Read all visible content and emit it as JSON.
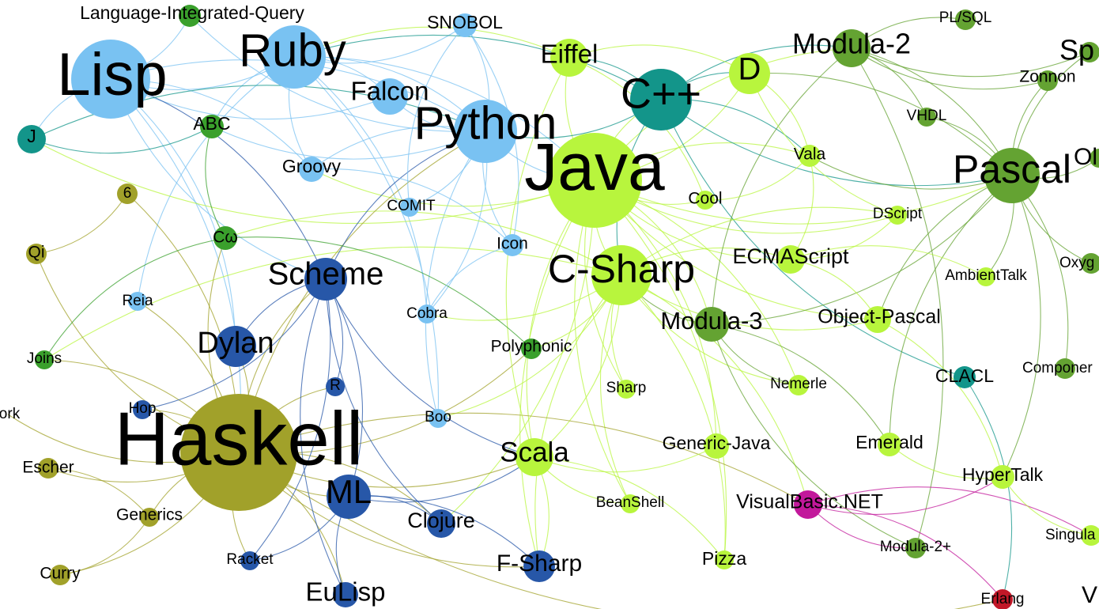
{
  "colors": {
    "light_blue": "#79c2f2",
    "dark_blue": "#2757a8",
    "teal": "#13958a",
    "lime": "#b8f53d",
    "green": "#3aa02c",
    "mid_green": "#64a332",
    "olive": "#a1a12a",
    "magenta": "#c2189b",
    "red": "#c21828"
  },
  "nodes": [
    {
      "id": "lisp",
      "label": "Lisp",
      "color": "light_blue"
    },
    {
      "id": "ruby",
      "label": "Ruby",
      "color": "light_blue"
    },
    {
      "id": "liq",
      "label": "Language-Integrated-Query",
      "color": "green"
    },
    {
      "id": "snobol",
      "label": "SNOBOL",
      "color": "light_blue"
    },
    {
      "id": "falcon",
      "label": "Falcon",
      "color": "light_blue"
    },
    {
      "id": "python",
      "label": "Python",
      "color": "light_blue"
    },
    {
      "id": "abc",
      "label": "ABC",
      "color": "green"
    },
    {
      "id": "j",
      "label": "J",
      "color": "teal"
    },
    {
      "id": "groovy",
      "label": "Groovy",
      "color": "light_blue"
    },
    {
      "id": "six",
      "label": "6",
      "color": "olive"
    },
    {
      "id": "comit",
      "label": "COMIT",
      "color": "light_blue"
    },
    {
      "id": "cw",
      "label": "Cω",
      "color": "green"
    },
    {
      "id": "qi",
      "label": "Qi",
      "color": "olive"
    },
    {
      "id": "icon",
      "label": "Icon",
      "color": "light_blue"
    },
    {
      "id": "scheme",
      "label": "Scheme",
      "color": "dark_blue"
    },
    {
      "id": "reia",
      "label": "Reia",
      "color": "light_blue"
    },
    {
      "id": "cobra",
      "label": "Cobra",
      "color": "light_blue"
    },
    {
      "id": "dylan",
      "label": "Dylan",
      "color": "dark_blue"
    },
    {
      "id": "polyphonic",
      "label": "Polyphonic",
      "color": "green"
    },
    {
      "id": "joins",
      "label": "Joins",
      "color": "green"
    },
    {
      "id": "r",
      "label": "R",
      "color": "dark_blue"
    },
    {
      "id": "hop",
      "label": "Hop",
      "color": "dark_blue"
    },
    {
      "id": "ork",
      "label": "ork",
      "color": "green"
    },
    {
      "id": "boo",
      "label": "Boo",
      "color": "light_blue"
    },
    {
      "id": "haskell",
      "label": "Haskell",
      "color": "olive"
    },
    {
      "id": "escher",
      "label": "Escher",
      "color": "olive"
    },
    {
      "id": "generics",
      "label": "Generics",
      "color": "olive"
    },
    {
      "id": "ml",
      "label": "ML",
      "color": "dark_blue"
    },
    {
      "id": "clojure",
      "label": "Clojure",
      "color": "dark_blue"
    },
    {
      "id": "racket",
      "label": "Racket",
      "color": "dark_blue"
    },
    {
      "id": "curry",
      "label": "Curry",
      "color": "olive"
    },
    {
      "id": "eulisp",
      "label": "EuLisp",
      "color": "dark_blue"
    },
    {
      "id": "fsharp",
      "label": "F-Sharp",
      "color": "dark_blue"
    },
    {
      "id": "eiffel",
      "label": "Eiffel",
      "color": "lime"
    },
    {
      "id": "cpp",
      "label": "C++",
      "color": "teal"
    },
    {
      "id": "d",
      "label": "D",
      "color": "lime"
    },
    {
      "id": "java",
      "label": "Java",
      "color": "lime"
    },
    {
      "id": "cool",
      "label": "Cool",
      "color": "lime"
    },
    {
      "id": "vala",
      "label": "Vala",
      "color": "lime"
    },
    {
      "id": "csharp",
      "label": "C-Sharp",
      "color": "lime"
    },
    {
      "id": "modula3",
      "label": "Modula-3",
      "color": "mid_green"
    },
    {
      "id": "ecmascript",
      "label": "ECMAScript",
      "color": "lime"
    },
    {
      "id": "objpascal",
      "label": "Object-Pascal",
      "color": "lime"
    },
    {
      "id": "sharp",
      "label": "Sharp",
      "color": "lime"
    },
    {
      "id": "nemerle",
      "label": "Nemerle",
      "color": "lime"
    },
    {
      "id": "scala",
      "label": "Scala",
      "color": "lime"
    },
    {
      "id": "genjava",
      "label": "Generic-Java",
      "color": "lime"
    },
    {
      "id": "beanshell",
      "label": "BeanShell",
      "color": "lime"
    },
    {
      "id": "pizza",
      "label": "Pizza",
      "color": "lime"
    },
    {
      "id": "vbnet",
      "label": "VisualBasic.NET",
      "color": "magenta"
    },
    {
      "id": "emerald",
      "label": "Emerald",
      "color": "lime"
    },
    {
      "id": "modula2",
      "label": "Modula-2",
      "color": "mid_green"
    },
    {
      "id": "plsql",
      "label": "PL/SQL",
      "color": "mid_green"
    },
    {
      "id": "sp",
      "label": "Sp",
      "color": "mid_green"
    },
    {
      "id": "zonnon",
      "label": "Zonnon",
      "color": "mid_green"
    },
    {
      "id": "vhdl",
      "label": "VHDL",
      "color": "mid_green"
    },
    {
      "id": "pascal",
      "label": "Pascal",
      "color": "mid_green"
    },
    {
      "id": "ol",
      "label": "Ol",
      "color": "mid_green"
    },
    {
      "id": "dscript",
      "label": "DScript",
      "color": "lime"
    },
    {
      "id": "ambienttalk",
      "label": "AmbientTalk",
      "color": "lime"
    },
    {
      "id": "oxygene",
      "label": "Oxyg",
      "color": "mid_green"
    },
    {
      "id": "clacl",
      "label": "CLACL",
      "color": "teal"
    },
    {
      "id": "component",
      "label": "Componer",
      "color": "mid_green"
    },
    {
      "id": "hypertalk",
      "label": "HyperTalk",
      "color": "lime"
    },
    {
      "id": "singular",
      "label": "Singula",
      "color": "lime"
    },
    {
      "id": "modula2p",
      "label": "Modula-2+",
      "color": "mid_green"
    },
    {
      "id": "erlang",
      "label": "Erlang",
      "color": "red"
    },
    {
      "id": "v",
      "label": "V",
      "color": "mid_green"
    }
  ],
  "edges": [
    [
      "lisp",
      "ruby"
    ],
    [
      "lisp",
      "python"
    ],
    [
      "lisp",
      "scheme"
    ],
    [
      "lisp",
      "dylan"
    ],
    [
      "lisp",
      "j"
    ],
    [
      "lisp",
      "haskell"
    ],
    [
      "lisp",
      "falcon"
    ],
    [
      "lisp",
      "groovy"
    ],
    [
      "lisp",
      "liq"
    ],
    [
      "ruby",
      "python"
    ],
    [
      "ruby",
      "groovy"
    ],
    [
      "ruby",
      "falcon"
    ],
    [
      "ruby",
      "snobol"
    ],
    [
      "ruby",
      "java"
    ],
    [
      "ruby",
      "abc"
    ],
    [
      "ruby",
      "cobra"
    ],
    [
      "ruby",
      "reia"
    ],
    [
      "ruby",
      "boo"
    ],
    [
      "python",
      "java"
    ],
    [
      "python",
      "abc"
    ],
    [
      "python",
      "icon"
    ],
    [
      "python",
      "cobra"
    ],
    [
      "python",
      "boo"
    ],
    [
      "python",
      "falcon"
    ],
    [
      "python",
      "groovy"
    ],
    [
      "python",
      "comit"
    ],
    [
      "python",
      "snobol"
    ],
    [
      "python",
      "liq"
    ],
    [
      "java",
      "csharp"
    ],
    [
      "java",
      "cpp"
    ],
    [
      "java",
      "scala"
    ],
    [
      "java",
      "eiffel"
    ],
    [
      "java",
      "d"
    ],
    [
      "java",
      "modula3"
    ],
    [
      "java",
      "pascal"
    ],
    [
      "java",
      "groovy"
    ],
    [
      "java",
      "cool"
    ],
    [
      "java",
      "vala"
    ],
    [
      "java",
      "ecmascript"
    ],
    [
      "java",
      "genjava"
    ],
    [
      "java",
      "beanshell"
    ],
    [
      "java",
      "pizza"
    ],
    [
      "java",
      "sharp"
    ],
    [
      "java",
      "nemerle"
    ],
    [
      "java",
      "objpascal"
    ],
    [
      "java",
      "modula2"
    ],
    [
      "java",
      "fsharp"
    ],
    [
      "java",
      "clojure"
    ],
    [
      "java",
      "dscript"
    ],
    [
      "java",
      "j"
    ],
    [
      "cpp",
      "eiffel"
    ],
    [
      "cpp",
      "d"
    ],
    [
      "cpp",
      "csharp"
    ],
    [
      "cpp",
      "python"
    ],
    [
      "cpp",
      "ruby"
    ],
    [
      "cpp",
      "modula2"
    ],
    [
      "cpp",
      "clacl"
    ],
    [
      "cpp",
      "vala"
    ],
    [
      "cpp",
      "pascal"
    ],
    [
      "csharp",
      "scala"
    ],
    [
      "csharp",
      "fsharp"
    ],
    [
      "csharp",
      "polyphonic"
    ],
    [
      "csharp",
      "cw"
    ],
    [
      "csharp",
      "vbnet"
    ],
    [
      "csharp",
      "nemerle"
    ],
    [
      "csharp",
      "ecmascript"
    ],
    [
      "csharp",
      "sharp"
    ],
    [
      "csharp",
      "boo"
    ],
    [
      "csharp",
      "objpascal"
    ],
    [
      "csharp",
      "cobra"
    ],
    [
      "csharp",
      "joins"
    ],
    [
      "csharp",
      "pizza"
    ],
    [
      "csharp",
      "beanshell"
    ],
    [
      "csharp",
      "dscript"
    ],
    [
      "haskell",
      "ml"
    ],
    [
      "haskell",
      "scheme"
    ],
    [
      "haskell",
      "dylan"
    ],
    [
      "haskell",
      "clojure"
    ],
    [
      "haskell",
      "fsharp"
    ],
    [
      "haskell",
      "escher"
    ],
    [
      "haskell",
      "generics"
    ],
    [
      "haskell",
      "curry"
    ],
    [
      "haskell",
      "racket"
    ],
    [
      "haskell",
      "qi"
    ],
    [
      "haskell",
      "six"
    ],
    [
      "haskell",
      "cw"
    ],
    [
      "haskell",
      "joins"
    ],
    [
      "haskell",
      "ork"
    ],
    [
      "haskell",
      "hop"
    ],
    [
      "haskell",
      "eulisp"
    ],
    [
      "haskell",
      "scala"
    ],
    [
      "haskell",
      "python"
    ],
    [
      "haskell",
      "erlang"
    ],
    [
      "haskell",
      "vbnet"
    ],
    [
      "haskell",
      "polyphonic"
    ],
    [
      "haskell",
      "r"
    ],
    [
      "haskell",
      "reia"
    ],
    [
      "scheme",
      "ml"
    ],
    [
      "scheme",
      "dylan"
    ],
    [
      "scheme",
      "racket"
    ],
    [
      "scheme",
      "clojure"
    ],
    [
      "scheme",
      "r"
    ],
    [
      "scheme",
      "eulisp"
    ],
    [
      "scheme",
      "hop"
    ],
    [
      "scheme",
      "lisp"
    ],
    [
      "scheme",
      "python"
    ],
    [
      "scheme",
      "scala"
    ],
    [
      "ml",
      "fsharp"
    ],
    [
      "ml",
      "scala"
    ],
    [
      "ml",
      "clojure"
    ],
    [
      "ml",
      "eulisp"
    ],
    [
      "ml",
      "racket"
    ],
    [
      "pascal",
      "modula2"
    ],
    [
      "pascal",
      "modula3"
    ],
    [
      "pascal",
      "objpascal"
    ],
    [
      "pascal",
      "zonnon"
    ],
    [
      "pascal",
      "vhdl"
    ],
    [
      "pascal",
      "ambienttalk"
    ],
    [
      "pascal",
      "oxygene"
    ],
    [
      "pascal",
      "component"
    ],
    [
      "pascal",
      "ol"
    ],
    [
      "pascal",
      "sp"
    ],
    [
      "pascal",
      "emerald"
    ],
    [
      "pascal",
      "hypertalk"
    ],
    [
      "pascal",
      "d"
    ],
    [
      "pascal",
      "vala"
    ],
    [
      "modula2",
      "zonnon"
    ],
    [
      "modula2",
      "plsql"
    ],
    [
      "modula2",
      "modula3"
    ],
    [
      "modula2",
      "vhdl"
    ],
    [
      "modula2",
      "sp"
    ],
    [
      "modula2",
      "modula2p"
    ],
    [
      "modula3",
      "modula2p"
    ],
    [
      "modula3",
      "emerald"
    ],
    [
      "modula3",
      "nemerle"
    ],
    [
      "modula3",
      "csharp"
    ],
    [
      "scala",
      "beanshell"
    ],
    [
      "scala",
      "pizza"
    ],
    [
      "scala",
      "genjava"
    ],
    [
      "scala",
      "fsharp"
    ],
    [
      "vbnet",
      "hypertalk"
    ],
    [
      "vbnet",
      "erlang"
    ],
    [
      "vbnet",
      "modula2p"
    ],
    [
      "vbnet",
      "singular"
    ],
    [
      "hypertalk",
      "singular"
    ],
    [
      "hypertalk",
      "emerald"
    ],
    [
      "hypertalk",
      "objpascal"
    ],
    [
      "eiffel",
      "d"
    ],
    [
      "eiffel",
      "ruby"
    ],
    [
      "eiffel",
      "cool"
    ],
    [
      "eiffel",
      "scala"
    ],
    [
      "cw",
      "polyphonic"
    ],
    [
      "cw",
      "joins"
    ],
    [
      "cw",
      "abc"
    ],
    [
      "j",
      "abc"
    ],
    [
      "j",
      "python"
    ],
    [
      "qi",
      "six"
    ],
    [
      "escher",
      "generics"
    ],
    [
      "curry",
      "generics"
    ],
    [
      "ecmascript",
      "ambienttalk"
    ],
    [
      "ecmascript",
      "dscript"
    ],
    [
      "ecmascript",
      "objpascal"
    ],
    [
      "ecmascript",
      "vala"
    ],
    [
      "clacl",
      "erlang"
    ],
    [
      "d",
      "dscript"
    ],
    [
      "d",
      "vala"
    ],
    [
      "cool",
      "vala"
    ],
    [
      "groovy",
      "icon"
    ],
    [
      "icon",
      "snobol"
    ],
    [
      "comit",
      "snobol"
    ],
    [
      "icon",
      "cobra"
    ]
  ]
}
